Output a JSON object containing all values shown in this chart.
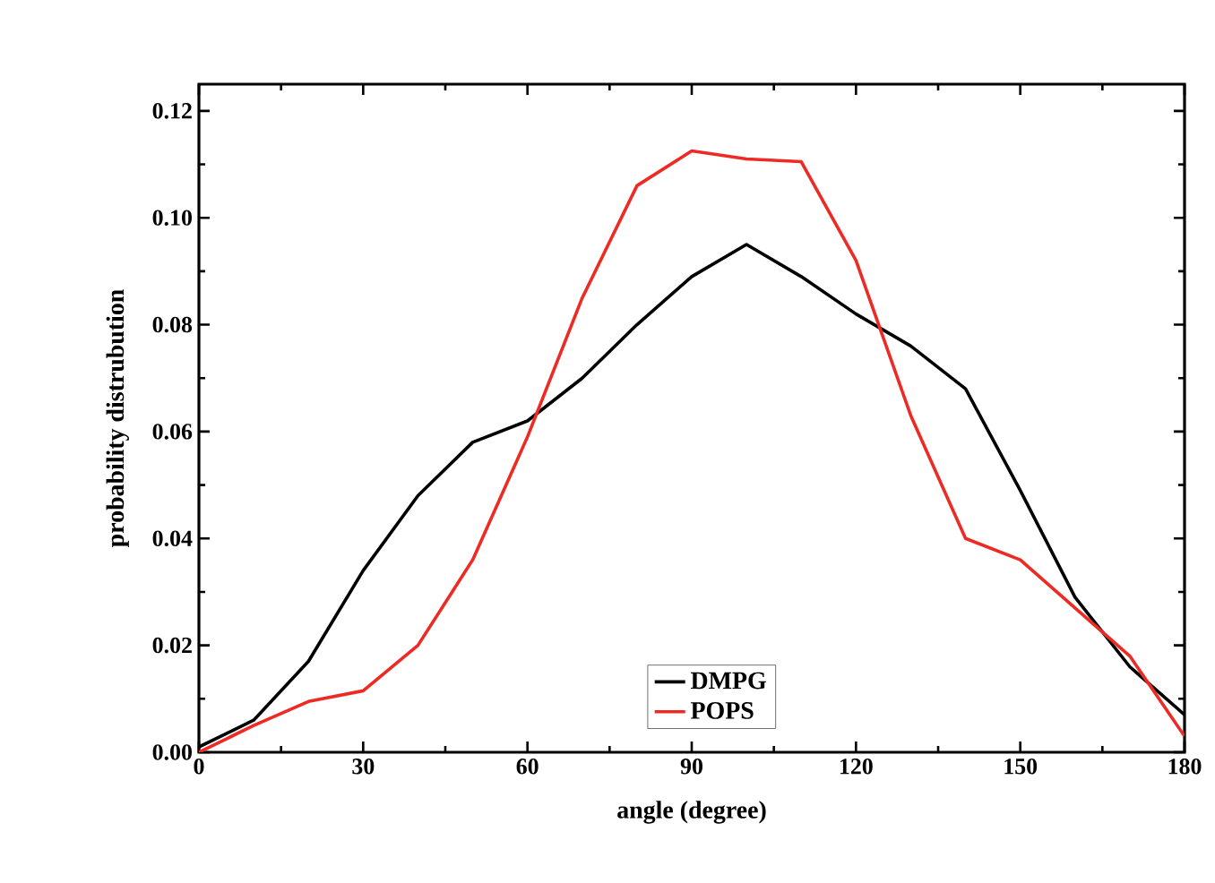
{
  "chart_data": {
    "type": "line",
    "xlabel": "angle (degree)",
    "ylabel": "probability distrubution",
    "x": [
      0,
      10,
      20,
      30,
      40,
      50,
      60,
      70,
      80,
      90,
      100,
      110,
      120,
      130,
      140,
      150,
      160,
      170,
      180
    ],
    "series": [
      {
        "name": "DMPG",
        "color": "#000000",
        "values": [
          0.001,
          0.006,
          0.017,
          0.034,
          0.048,
          0.058,
          0.062,
          0.07,
          0.08,
          0.089,
          0.095,
          0.089,
          0.082,
          0.076,
          0.068,
          0.049,
          0.029,
          0.016,
          0.007
        ]
      },
      {
        "name": "POPS",
        "color": "#ee2a24",
        "values": [
          0.0,
          0.005,
          0.0095,
          0.0115,
          0.02,
          0.036,
          0.059,
          0.085,
          0.106,
          0.1125,
          0.111,
          0.1105,
          0.092,
          0.063,
          0.04,
          0.036,
          0.027,
          0.018,
          0.003
        ]
      }
    ],
    "xlim": [
      0,
      180
    ],
    "ylim": [
      0,
      0.125
    ],
    "xticks": [
      0,
      30,
      60,
      90,
      120,
      150,
      180
    ],
    "yticks": [
      {
        "value": 0,
        "label": "0.00"
      },
      {
        "value": 0.02,
        "label": "0.02"
      },
      {
        "value": 0.04,
        "label": "0.04"
      },
      {
        "value": 0.06,
        "label": "0.06"
      },
      {
        "value": 0.08,
        "label": "0.08"
      },
      {
        "value": 0.1,
        "label": "0.10"
      },
      {
        "value": 0.12,
        "label": "0.12"
      }
    ],
    "grid": false,
    "legend": "bottom right",
    "marker": "none",
    "line_style": "solid"
  }
}
